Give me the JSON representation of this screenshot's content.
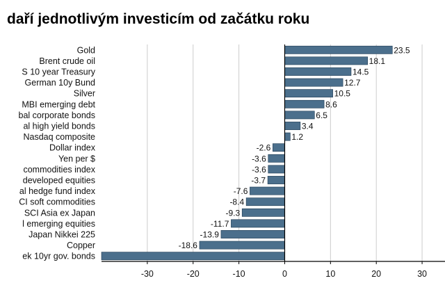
{
  "chart_data": {
    "type": "bar",
    "orientation": "horizontal",
    "title": "daří jednotlivým investicím od začátku roku",
    "categories": [
      "Gold",
      "Brent crude oil",
      "S 10 year Treasury",
      "German 10y Bund",
      "Silver",
      "MBI emerging debt",
      "bal corporate bonds",
      "al high yield bonds",
      "Nasdaq composite",
      "Dollar index",
      "Yen per $",
      "commodities index",
      "developed equities",
      "al hedge fund index",
      "CI soft commodities",
      "SCI Asia ex Japan",
      "l emerging equities",
      "Japan Nikkei 225",
      "Copper",
      "ek 10yr gov. bonds"
    ],
    "values": [
      23.5,
      18.1,
      14.5,
      12.7,
      10.5,
      8.6,
      6.5,
      3.4,
      1.2,
      -2.6,
      -3.6,
      -3.6,
      -3.7,
      -7.6,
      -8.4,
      -9.3,
      -11.7,
      -13.9,
      -18.6,
      -40
    ],
    "value_labels": [
      "23.5",
      "18.1",
      "14.5",
      "12.7",
      "10.5",
      "8.6",
      "6.5",
      "3.4",
      "1.2",
      "-2.6",
      "-3.6",
      "-3.6",
      "-3.7",
      "-7.6",
      "-8.4",
      "-9.3",
      "-11.7",
      "-13.9",
      "-18.6",
      ""
    ],
    "xlim": [
      -40,
      35
    ],
    "xticks": [
      -30,
      -20,
      -10,
      0,
      10,
      20,
      30
    ],
    "grid": true,
    "bar_color": "#4b6f8c",
    "bar_edge_color": "#1e3a52",
    "grid_color": "#cccccc"
  }
}
